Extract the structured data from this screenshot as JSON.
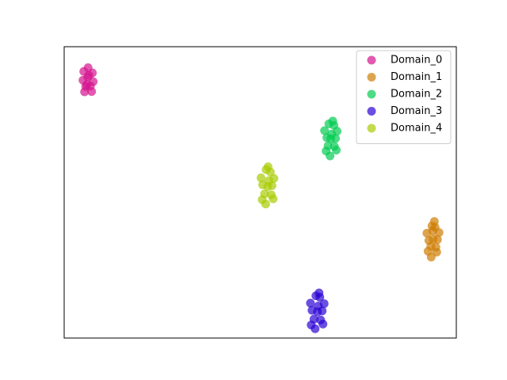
{
  "chart_data": {
    "type": "scatter",
    "xlim": [
      0,
      100
    ],
    "ylim": [
      0,
      100
    ],
    "legend": "upper right",
    "alpha": 0.7,
    "series": [
      {
        "name": "Domain_0",
        "color": "#d4148e",
        "x": [
          5.0,
          7.2,
          6.1,
          4.8,
          7.4,
          5.5,
          6.7,
          6.0,
          5.2,
          7.0,
          6.3,
          5.8
        ],
        "values": [
          91.5,
          91.0,
          92.8,
          88.5,
          88.0,
          86.3,
          86.5,
          89.5,
          84.5,
          84.6,
          90.2,
          87.0
        ]
      },
      {
        "name": "Domain_1",
        "color": "#cf7d04",
        "x": [
          93.8,
          94.6,
          92.5,
          95.6,
          93.0,
          95.2,
          94.1,
          93.5,
          94.8,
          92.8,
          95.0,
          94.0,
          93.6,
          94.4
        ],
        "values": [
          38.5,
          38.0,
          36.0,
          36.2,
          33.5,
          33.8,
          34.0,
          31.5,
          31.2,
          29.8,
          29.5,
          36.8,
          27.8,
          40.0
        ]
      },
      {
        "name": "Domain_2",
        "color": "#04cc52",
        "x": [
          67.5,
          68.8,
          66.4,
          69.6,
          67.0,
          69.2,
          68.0,
          67.3,
          68.9,
          66.8,
          69.4,
          68.2,
          67.8,
          68.5
        ],
        "values": [
          73.5,
          73.0,
          71.2,
          71.0,
          68.8,
          68.5,
          68.4,
          66.0,
          65.8,
          64.2,
          64.5,
          70.0,
          62.5,
          74.5
        ]
      },
      {
        "name": "Domain_3",
        "color": "#2c04d4",
        "x": [
          64.2,
          65.2,
          62.8,
          66.3,
          63.2,
          65.8,
          64.6,
          63.7,
          65.4,
          63.0,
          66.0,
          64.8,
          64.0,
          65.0
        ],
        "values": [
          14.5,
          14.0,
          12.0,
          11.8,
          9.5,
          9.3,
          9.0,
          6.5,
          6.2,
          4.5,
          4.8,
          11.0,
          3.2,
          15.5
        ]
      },
      {
        "name": "Domain_4",
        "color": "#a8cc04",
        "x": [
          51.5,
          52.6,
          50.2,
          53.5,
          50.6,
          53.0,
          51.9,
          51.1,
          52.8,
          50.5,
          53.3,
          52.2,
          51.4,
          52.0
        ],
        "values": [
          57.8,
          57.0,
          55.0,
          54.8,
          52.6,
          52.3,
          52.0,
          49.5,
          49.2,
          47.5,
          47.8,
          54.0,
          46.0,
          58.8
        ]
      }
    ]
  }
}
